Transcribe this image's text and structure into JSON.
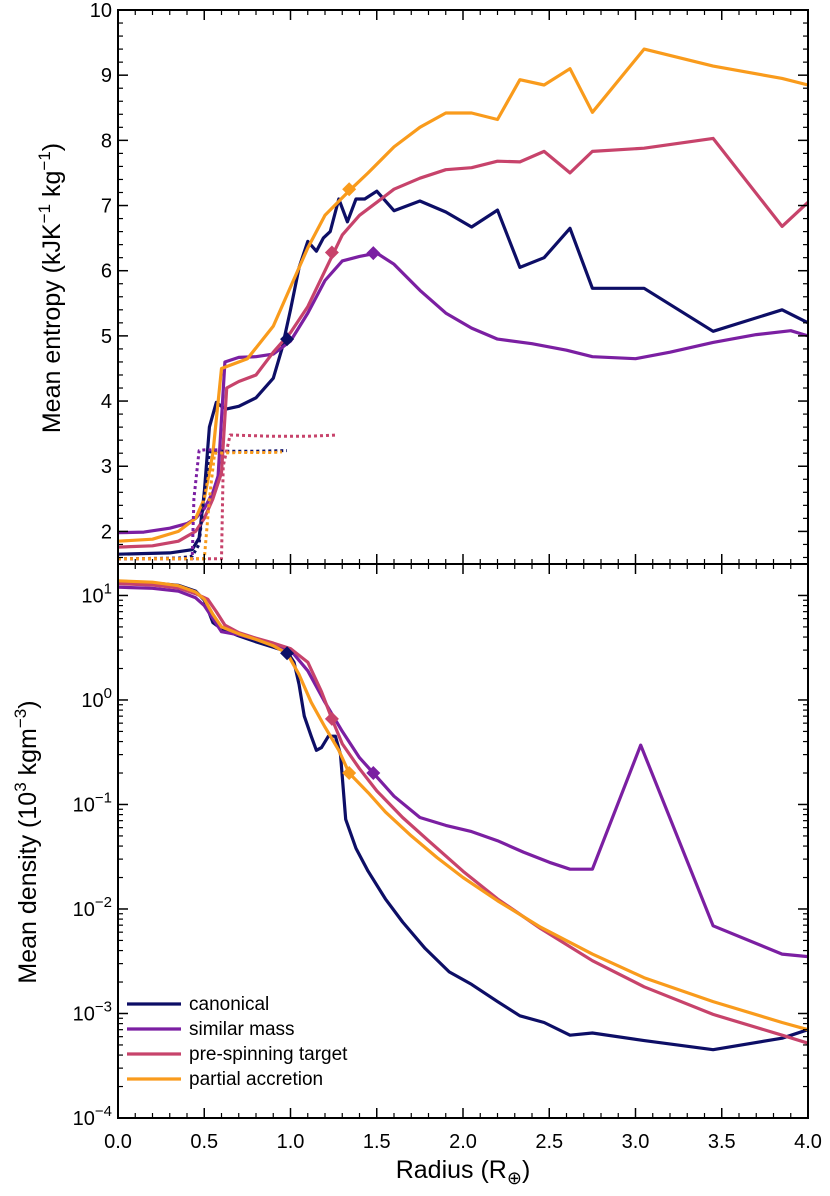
{
  "chart_data": [
    {
      "type": "line",
      "panel": "top",
      "title": "",
      "xlabel": "",
      "ylabel": "Mean entropy (kJK⁻¹ kg⁻¹)",
      "ylabel_main": "Mean entropy (kJK",
      "ylabel_sup1": "−1",
      "ylabel_mid": " kg",
      "ylabel_sup2": "−1",
      "ylabel_end": ")",
      "xlim": [
        0,
        4
      ],
      "ylim": [
        1.5,
        10
      ],
      "y_scale": "linear",
      "yticks": [
        2,
        3,
        4,
        5,
        6,
        7,
        8,
        9,
        10
      ],
      "ytick_labels": [
        "2",
        "3",
        "4",
        "5",
        "6",
        "7",
        "8",
        "9",
        "10"
      ],
      "series": [
        {
          "name": "canonical",
          "color": "#0d0e66",
          "style": "solid",
          "x": [
            0.0,
            0.3,
            0.43,
            0.47,
            0.5,
            0.53,
            0.57,
            0.6,
            0.63,
            0.7,
            0.8,
            0.9,
            0.95,
            1.0,
            1.05,
            1.1,
            1.15,
            1.19,
            1.23,
            1.28,
            1.33,
            1.38,
            1.43,
            1.5,
            1.6,
            1.75,
            1.9,
            2.05,
            2.2,
            2.33,
            2.47,
            2.62,
            2.75,
            3.05,
            3.45,
            3.85,
            4.0
          ],
          "y": [
            1.65,
            1.67,
            1.72,
            1.9,
            2.6,
            3.6,
            3.98,
            3.92,
            3.88,
            3.92,
            4.05,
            4.35,
            4.8,
            5.4,
            6.05,
            6.45,
            6.3,
            6.5,
            6.6,
            7.1,
            6.75,
            7.1,
            7.1,
            7.22,
            6.92,
            7.07,
            6.9,
            6.67,
            6.93,
            6.05,
            6.2,
            6.65,
            5.73,
            5.73,
            5.07,
            5.4,
            5.2
          ]
        },
        {
          "name": "similar mass",
          "color": "#7b1fa2",
          "style": "solid",
          "x": [
            0.0,
            0.15,
            0.3,
            0.4,
            0.45,
            0.5,
            0.55,
            0.58,
            0.62,
            0.7,
            0.8,
            0.9,
            1.0,
            1.1,
            1.2,
            1.3,
            1.4,
            1.5,
            1.6,
            1.75,
            1.9,
            2.05,
            2.2,
            2.4,
            2.6,
            2.75,
            3.0,
            3.2,
            3.45,
            3.7,
            3.9,
            4.0
          ],
          "y": [
            1.98,
            1.99,
            2.05,
            2.12,
            2.2,
            2.35,
            2.6,
            2.85,
            4.6,
            4.67,
            4.68,
            4.72,
            4.92,
            5.35,
            5.85,
            6.15,
            6.22,
            6.27,
            6.1,
            5.7,
            5.35,
            5.12,
            4.95,
            4.88,
            4.78,
            4.68,
            4.65,
            4.75,
            4.9,
            5.02,
            5.08,
            5.0
          ]
        },
        {
          "name": "pre-spinning target",
          "color": "#c7436b",
          "style": "solid",
          "x": [
            0.0,
            0.2,
            0.35,
            0.45,
            0.5,
            0.55,
            0.6,
            0.63,
            0.7,
            0.8,
            0.9,
            1.0,
            1.1,
            1.2,
            1.3,
            1.4,
            1.5,
            1.6,
            1.75,
            1.9,
            2.05,
            2.2,
            2.33,
            2.47,
            2.62,
            2.75,
            3.05,
            3.45,
            3.85,
            4.0
          ],
          "y": [
            1.76,
            1.78,
            1.85,
            2.0,
            2.2,
            2.5,
            2.9,
            4.2,
            4.3,
            4.4,
            4.75,
            5.05,
            5.45,
            6.0,
            6.55,
            6.85,
            7.05,
            7.25,
            7.42,
            7.55,
            7.58,
            7.68,
            7.67,
            7.83,
            7.5,
            7.83,
            7.88,
            8.03,
            6.68,
            7.05
          ]
        },
        {
          "name": "partial accretion",
          "color": "#f99b1c",
          "style": "solid",
          "x": [
            0.0,
            0.2,
            0.35,
            0.45,
            0.5,
            0.55,
            0.6,
            0.65,
            0.75,
            0.9,
            1.0,
            1.1,
            1.2,
            1.3,
            1.35,
            1.45,
            1.6,
            1.75,
            1.9,
            2.05,
            2.2,
            2.33,
            2.47,
            2.62,
            2.75,
            3.05,
            3.45,
            3.85,
            4.0
          ],
          "y": [
            1.85,
            1.88,
            2.0,
            2.2,
            2.5,
            3.2,
            4.5,
            4.55,
            4.65,
            5.15,
            5.75,
            6.35,
            6.85,
            7.12,
            7.25,
            7.5,
            7.9,
            8.2,
            8.42,
            8.42,
            8.32,
            8.93,
            8.85,
            9.1,
            8.43,
            9.4,
            9.14,
            8.95,
            8.85
          ]
        },
        {
          "name": "canonical-initial",
          "color": "#0d0e66",
          "style": "dotted",
          "x": [
            0.0,
            0.35,
            0.43,
            0.47,
            0.5,
            0.53,
            0.6,
            0.8,
            0.98
          ],
          "y": [
            1.58,
            1.59,
            1.62,
            1.8,
            2.6,
            3.22,
            3.23,
            3.23,
            3.24
          ]
        },
        {
          "name": "similar-mass-initial",
          "color": "#7b1fa2",
          "style": "dotted",
          "x": [
            0.0,
            0.43,
            0.44,
            0.47,
            0.5,
            0.6
          ],
          "y": [
            1.58,
            1.58,
            2.5,
            3.24,
            3.25,
            3.25
          ]
        },
        {
          "name": "pre-spinning-initial",
          "color": "#c7436b",
          "style": "dotted",
          "x": [
            0.0,
            0.6,
            0.61,
            0.65,
            0.9,
            1.1,
            1.27
          ],
          "y": [
            1.58,
            1.58,
            3.0,
            3.48,
            3.46,
            3.46,
            3.48
          ]
        },
        {
          "name": "partial-accretion-initial",
          "color": "#f99b1c",
          "style": "dotted",
          "x": [
            0.0,
            0.5,
            0.53,
            0.56,
            0.7,
            0.9,
            0.95
          ],
          "y": [
            1.58,
            1.58,
            2.5,
            3.2,
            3.21,
            3.21,
            3.22
          ]
        }
      ],
      "markers": [
        {
          "series": "canonical",
          "x": 0.98,
          "y": 4.95,
          "color": "#0d0e66"
        },
        {
          "series": "similar mass",
          "x": 1.48,
          "y": 6.27,
          "color": "#7b1fa2"
        },
        {
          "series": "pre-spinning target",
          "x": 1.24,
          "y": 6.28,
          "color": "#c7436b"
        },
        {
          "series": "partial accretion",
          "x": 1.34,
          "y": 7.25,
          "color": "#f99b1c"
        }
      ]
    },
    {
      "type": "line",
      "panel": "bottom",
      "title": "",
      "xlabel": "Radius (R⊕)",
      "xlabel_main": "Radius (R",
      "xlabel_sub": "⊕",
      "xlabel_end": ")",
      "ylabel": "Mean density (10³ kgm⁻³)",
      "ylabel_main": "Mean density (10",
      "ylabel_sup1": "3",
      "ylabel_mid": " kgm",
      "ylabel_sup2": "−3",
      "ylabel_end": ")",
      "xlim": [
        0,
        4
      ],
      "ylim": [
        0.0001,
        20
      ],
      "y_scale": "log",
      "xticks": [
        0.0,
        0.5,
        1.0,
        1.5,
        2.0,
        2.5,
        3.0,
        3.5,
        4.0
      ],
      "xtick_labels": [
        "0.0",
        "0.5",
        "1.0",
        "1.5",
        "2.0",
        "2.5",
        "3.0",
        "3.5",
        "4.0"
      ],
      "yticks_exp": [
        -4,
        -3,
        -2,
        -1,
        0,
        1
      ],
      "ytick_base": "10",
      "ytick_exp_labels": [
        "−4",
        "−3",
        "−2",
        "−1",
        "0",
        "1"
      ],
      "legend": {
        "location": "lower-left",
        "entries": [
          "canonical",
          "similar mass",
          "pre-spinning target",
          "partial accretion"
        ]
      },
      "series": [
        {
          "name": "canonical",
          "color": "#0d0e66",
          "style": "solid",
          "x": [
            0.0,
            0.2,
            0.35,
            0.45,
            0.5,
            0.55,
            0.6,
            0.7,
            0.8,
            0.9,
            0.98,
            1.02,
            1.05,
            1.08,
            1.12,
            1.15,
            1.18,
            1.22,
            1.26,
            1.29,
            1.32,
            1.38,
            1.45,
            1.55,
            1.65,
            1.78,
            1.92,
            2.05,
            2.2,
            2.33,
            2.47,
            2.62,
            2.75,
            3.05,
            3.45,
            3.85,
            4.0
          ],
          "y": [
            13.5,
            13.2,
            12.5,
            11.0,
            9.0,
            5.5,
            4.8,
            4.1,
            3.6,
            3.2,
            2.9,
            2.3,
            1.4,
            0.7,
            0.45,
            0.33,
            0.35,
            0.45,
            0.45,
            0.3,
            0.072,
            0.038,
            0.023,
            0.0125,
            0.0075,
            0.0042,
            0.0025,
            0.0019,
            0.0013,
            0.00095,
            0.00082,
            0.00062,
            0.00065,
            0.00055,
            0.00045,
            0.00058,
            0.0007
          ]
        },
        {
          "name": "similar mass",
          "color": "#7b1fa2",
          "style": "solid",
          "x": [
            0.0,
            0.2,
            0.35,
            0.45,
            0.5,
            0.55,
            0.6,
            0.7,
            0.8,
            0.9,
            1.0,
            1.1,
            1.2,
            1.3,
            1.4,
            1.48,
            1.6,
            1.75,
            1.9,
            2.05,
            2.2,
            2.35,
            2.5,
            2.62,
            2.75,
            3.03,
            3.45,
            3.85,
            4.0
          ],
          "y": [
            12.0,
            11.7,
            11.0,
            9.5,
            8.0,
            6.0,
            4.5,
            4.2,
            3.8,
            3.4,
            3.0,
            1.9,
            0.95,
            0.5,
            0.28,
            0.2,
            0.12,
            0.075,
            0.063,
            0.055,
            0.045,
            0.035,
            0.028,
            0.024,
            0.024,
            0.37,
            0.0069,
            0.0037,
            0.0035
          ]
        },
        {
          "name": "pre-spinning target",
          "color": "#c7436b",
          "style": "solid",
          "x": [
            0.0,
            0.2,
            0.35,
            0.45,
            0.52,
            0.57,
            0.62,
            0.7,
            0.8,
            0.9,
            1.0,
            1.1,
            1.18,
            1.24,
            1.3,
            1.4,
            1.5,
            1.65,
            1.8,
            2.0,
            2.2,
            2.45,
            2.75,
            3.05,
            3.45,
            3.85,
            4.0
          ],
          "y": [
            13.0,
            12.6,
            11.8,
            10.4,
            9.2,
            7.0,
            5.2,
            4.4,
            3.9,
            3.5,
            3.1,
            2.3,
            1.2,
            0.66,
            0.38,
            0.22,
            0.135,
            0.075,
            0.045,
            0.023,
            0.0125,
            0.0065,
            0.0032,
            0.0018,
            0.00098,
            0.00062,
            0.00052
          ]
        },
        {
          "name": "partial accretion",
          "color": "#f99b1c",
          "style": "solid",
          "x": [
            0.0,
            0.2,
            0.35,
            0.45,
            0.5,
            0.55,
            0.6,
            0.7,
            0.8,
            0.9,
            0.98,
            1.05,
            1.12,
            1.2,
            1.28,
            1.34,
            1.45,
            1.55,
            1.7,
            1.85,
            2.0,
            2.2,
            2.45,
            2.75,
            3.05,
            3.45,
            3.85,
            4.0
          ],
          "y": [
            13.8,
            13.4,
            12.4,
            10.8,
            9.2,
            6.6,
            5.0,
            4.3,
            3.8,
            3.3,
            2.8,
            1.75,
            0.95,
            0.55,
            0.33,
            0.2,
            0.13,
            0.085,
            0.05,
            0.031,
            0.02,
            0.012,
            0.0067,
            0.0037,
            0.0022,
            0.0013,
            0.00082,
            0.0007
          ]
        }
      ],
      "markers": [
        {
          "series": "canonical",
          "x": 0.98,
          "y": 2.8,
          "color": "#0d0e66"
        },
        {
          "series": "similar mass",
          "x": 1.48,
          "y": 0.2,
          "color": "#7b1fa2"
        },
        {
          "series": "pre-spinning target",
          "x": 1.24,
          "y": 0.66,
          "color": "#c7436b"
        },
        {
          "series": "partial accretion",
          "x": 1.34,
          "y": 0.2,
          "color": "#f99b1c"
        }
      ]
    }
  ]
}
